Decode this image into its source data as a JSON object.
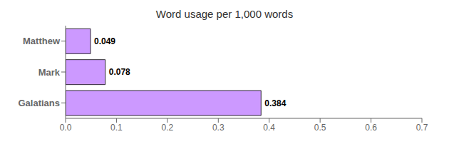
{
  "chart_data": {
    "type": "bar",
    "orientation": "horizontal",
    "title": "Word usage per 1,000 words",
    "categories": [
      "Matthew",
      "Mark",
      "Galatians"
    ],
    "values": [
      0.049,
      0.078,
      0.384
    ],
    "color": "#CC99FF",
    "xlim": [
      0.0,
      0.7
    ],
    "xticks": [
      {
        "value": 0.0,
        "label": "0.0"
      },
      0.1,
      0.2,
      0.3,
      0.4,
      0.5,
      0.6,
      0.7
    ],
    "data_labels": true,
    "grid": false
  }
}
